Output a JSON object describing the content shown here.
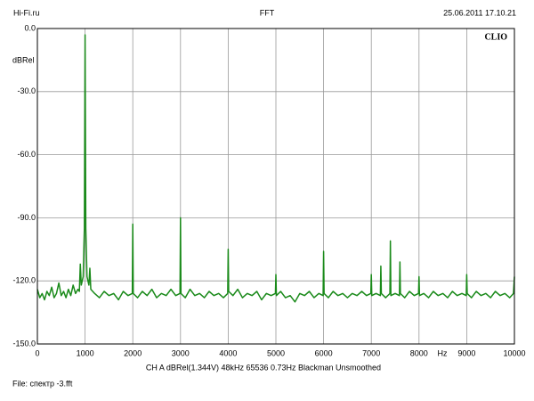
{
  "chart_data": {
    "type": "line",
    "title": "FFT",
    "source": "Hi-Fi.ru",
    "timestamp": "25.06.2011 17.10.21",
    "brand": "CLIO",
    "y_label": "dBRel",
    "x_label": "Hz",
    "settings": "CH A  dBRel(1.344V)  48kHz  65536  0.73Hz  Blackman  Unsmoothed",
    "file": "File: спектр -3.fft",
    "color": "#1a8a1a",
    "grid": true,
    "xlim": [
      0,
      10000
    ],
    "xticks": [
      0,
      1000,
      2000,
      3000,
      4000,
      5000,
      6000,
      7000,
      8000,
      9000,
      10000
    ],
    "ylim": [
      -150,
      0
    ],
    "yticks": [
      {
        "value": 0,
        "label": "0.0"
      },
      {
        "value": -30,
        "label": "-30.0"
      },
      {
        "value": -60,
        "label": "-60.0"
      },
      {
        "value": -90,
        "label": "-90.0"
      },
      {
        "value": -120,
        "label": "-120.0"
      },
      {
        "value": -150,
        "label": "-150.0"
      }
    ],
    "x": [
      0,
      50,
      100,
      150,
      200,
      250,
      300,
      350,
      400,
      450,
      500,
      550,
      600,
      650,
      700,
      750,
      800,
      850,
      880,
      900,
      920,
      960,
      985,
      1000,
      1015,
      1040,
      1080,
      1100,
      1120,
      1200,
      1300,
      1400,
      1500,
      1600,
      1700,
      1800,
      1900,
      1990,
      2000,
      2010,
      2100,
      2200,
      2300,
      2400,
      2500,
      2600,
      2700,
      2800,
      2900,
      2990,
      3000,
      3010,
      3100,
      3200,
      3300,
      3400,
      3500,
      3600,
      3700,
      3800,
      3900,
      3990,
      4000,
      4010,
      4100,
      4200,
      4300,
      4400,
      4500,
      4600,
      4700,
      4800,
      4900,
      4990,
      5000,
      5010,
      5100,
      5200,
      5300,
      5400,
      5500,
      5600,
      5700,
      5800,
      5900,
      5990,
      6000,
      6010,
      6100,
      6200,
      6300,
      6400,
      6500,
      6600,
      6700,
      6800,
      6900,
      6990,
      7000,
      7010,
      7100,
      7190,
      7200,
      7210,
      7300,
      7390,
      7400,
      7410,
      7500,
      7590,
      7600,
      7610,
      7700,
      7800,
      7900,
      7990,
      8000,
      8010,
      8100,
      8200,
      8300,
      8400,
      8500,
      8600,
      8700,
      8800,
      8900,
      8990,
      9000,
      9010,
      9100,
      9200,
      9300,
      9400,
      9500,
      9600,
      9700,
      9800,
      9900,
      9980,
      10000
    ],
    "values": [
      -124,
      -128,
      -126,
      -129,
      -125,
      -127,
      -123,
      -128,
      -126,
      -121,
      -127,
      -125,
      -128,
      -124,
      -127,
      -122,
      -126,
      -124,
      -125,
      -112,
      -122,
      -118,
      -95,
      -3,
      -95,
      -118,
      -122,
      -114,
      -124,
      -126,
      -128,
      -125,
      -127,
      -126,
      -129,
      -125,
      -127,
      -126,
      -93,
      -126,
      -128,
      -125,
      -127,
      -124,
      -128,
      -126,
      -127,
      -124,
      -127,
      -126,
      -90,
      -126,
      -128,
      -124,
      -127,
      -126,
      -128,
      -125,
      -127,
      -126,
      -128,
      -126,
      -105,
      -125,
      -127,
      -124,
      -128,
      -126,
      -127,
      -125,
      -129,
      -126,
      -127,
      -126,
      -117,
      -127,
      -125,
      -128,
      -127,
      -130,
      -126,
      -127,
      -125,
      -128,
      -126,
      -127,
      -106,
      -126,
      -128,
      -125,
      -127,
      -126,
      -128,
      -126,
      -127,
      -125,
      -127,
      -126,
      -117,
      -127,
      -126,
      -127,
      -113,
      -126,
      -128,
      -126,
      -101,
      -127,
      -126,
      -127,
      -111,
      -126,
      -128,
      -125,
      -127,
      -126,
      -118,
      -127,
      -126,
      -128,
      -125,
      -127,
      -126,
      -128,
      -125,
      -127,
      -126,
      -127,
      -117,
      -126,
      -128,
      -125,
      -127,
      -126,
      -128,
      -125,
      -127,
      -126,
      -128,
      -126,
      -118
    ]
  }
}
